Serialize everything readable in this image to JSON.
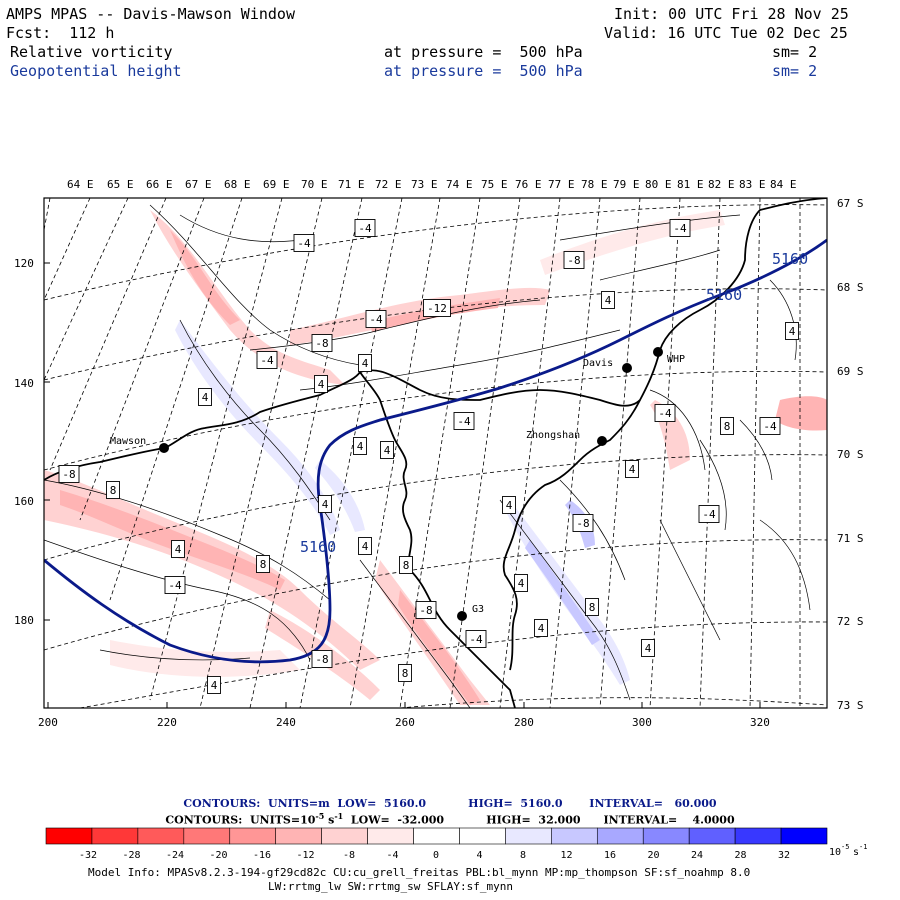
{
  "header": {
    "title": "AMPS MPAS -- Davis-Mawson Window",
    "init": "Init: 00 UTC Fri 28 Nov 25",
    "forecast": "Fcst:  112 h",
    "valid": "Valid: 16 UTC Tue 02 Dec 25",
    "field1": {
      "name": "Relative vorticity",
      "level": "at pressure =  500 hPa",
      "smooth": "sm= 2"
    },
    "field2": {
      "name": "Geopotential height",
      "level": "at pressure =  500 hPa",
      "smooth": "sm= 2"
    }
  },
  "axes": {
    "top_lon": [
      "64 E",
      "65 E",
      "66 E",
      "67 E",
      "68 E",
      "69 E",
      "70 E",
      "71 E",
      "72 E",
      "73 E",
      "74 E",
      "75 E",
      "76 E",
      "77 E",
      "78 E",
      "79 E",
      "80 E",
      "81 E",
      "82 E",
      "83 E",
      "84 E"
    ],
    "right_lat": [
      "67 S",
      "68 S",
      "69 S",
      "70 S",
      "71 S",
      "72 S",
      "73 S"
    ],
    "left_y": [
      "120",
      "140",
      "160",
      "180"
    ],
    "bottom_x": [
      "200",
      "220",
      "240",
      "260",
      "280",
      "300",
      "320"
    ]
  },
  "stations": [
    {
      "name": "Mawson"
    },
    {
      "name": "Davis"
    },
    {
      "name": "WHP"
    },
    {
      "name": "Zhongshan"
    },
    {
      "name": "G3"
    }
  ],
  "height_labels": [
    "5160",
    "5160",
    "5160"
  ],
  "contour_labels": [
    "-4",
    "-4",
    "-4",
    "-12",
    "-4",
    "4",
    "-8",
    "-4",
    "-8",
    "4",
    "4",
    "4",
    "-4",
    "4",
    "-4",
    "-4",
    "8",
    "4",
    "4",
    "-8",
    "4",
    "8",
    "4",
    "-4",
    "-8",
    "4",
    "8",
    "4",
    "-4",
    "8",
    "4",
    "8",
    "-8",
    "-8",
    "8",
    "-4",
    "4",
    "4",
    "4",
    "4"
  ],
  "contours_info": {
    "line1": "CONTOURS:  UNITS=m  LOW=  5160.0           HIGH=  5160.0       INTERVAL=   60.000",
    "line2_a": "CONTOURS:  UNITS=10",
    "line2_exp": "-5",
    "line2_b": " s",
    "line2_exp2": "-1",
    "line2_c": "  LOW=  -32.000           HIGH=  32.000      INTERVAL=    4.0000"
  },
  "colorbar": {
    "ticks": [
      "-32",
      "-28",
      "-24",
      "-20",
      "-16",
      "-12",
      "-8",
      "-4",
      "0",
      "4",
      "8",
      "12",
      "16",
      "20",
      "24",
      "28",
      "32"
    ],
    "units_base": "10",
    "units_exp": "-5",
    "units_s": "s",
    "units_exp2": "-1",
    "colors": [
      "#ff0000",
      "#ff3838",
      "#ff5a5a",
      "#ff7878",
      "#ff9696",
      "#ffb4b4",
      "#ffd2d2",
      "#ffeaea",
      "#ffffff",
      "#ffffff",
      "#e8e8ff",
      "#c8c8ff",
      "#a8a8ff",
      "#8888ff",
      "#6060ff",
      "#3838ff",
      "#0000ff"
    ]
  },
  "model_info": {
    "line1": "Model Info: MPASv8.2.3-194-gf29cd82c CU:cu_grell_freitas PBL:bl_mynn MP:mp_thompson SF:sf_noahmp 8.0",
    "line2": "LW:rrtmg_lw SW:rrtmg_sw SFLAY:sf_mynn"
  },
  "colors": {
    "height_line": "#0a1a8a",
    "label_blue": "#1a3a9c"
  }
}
